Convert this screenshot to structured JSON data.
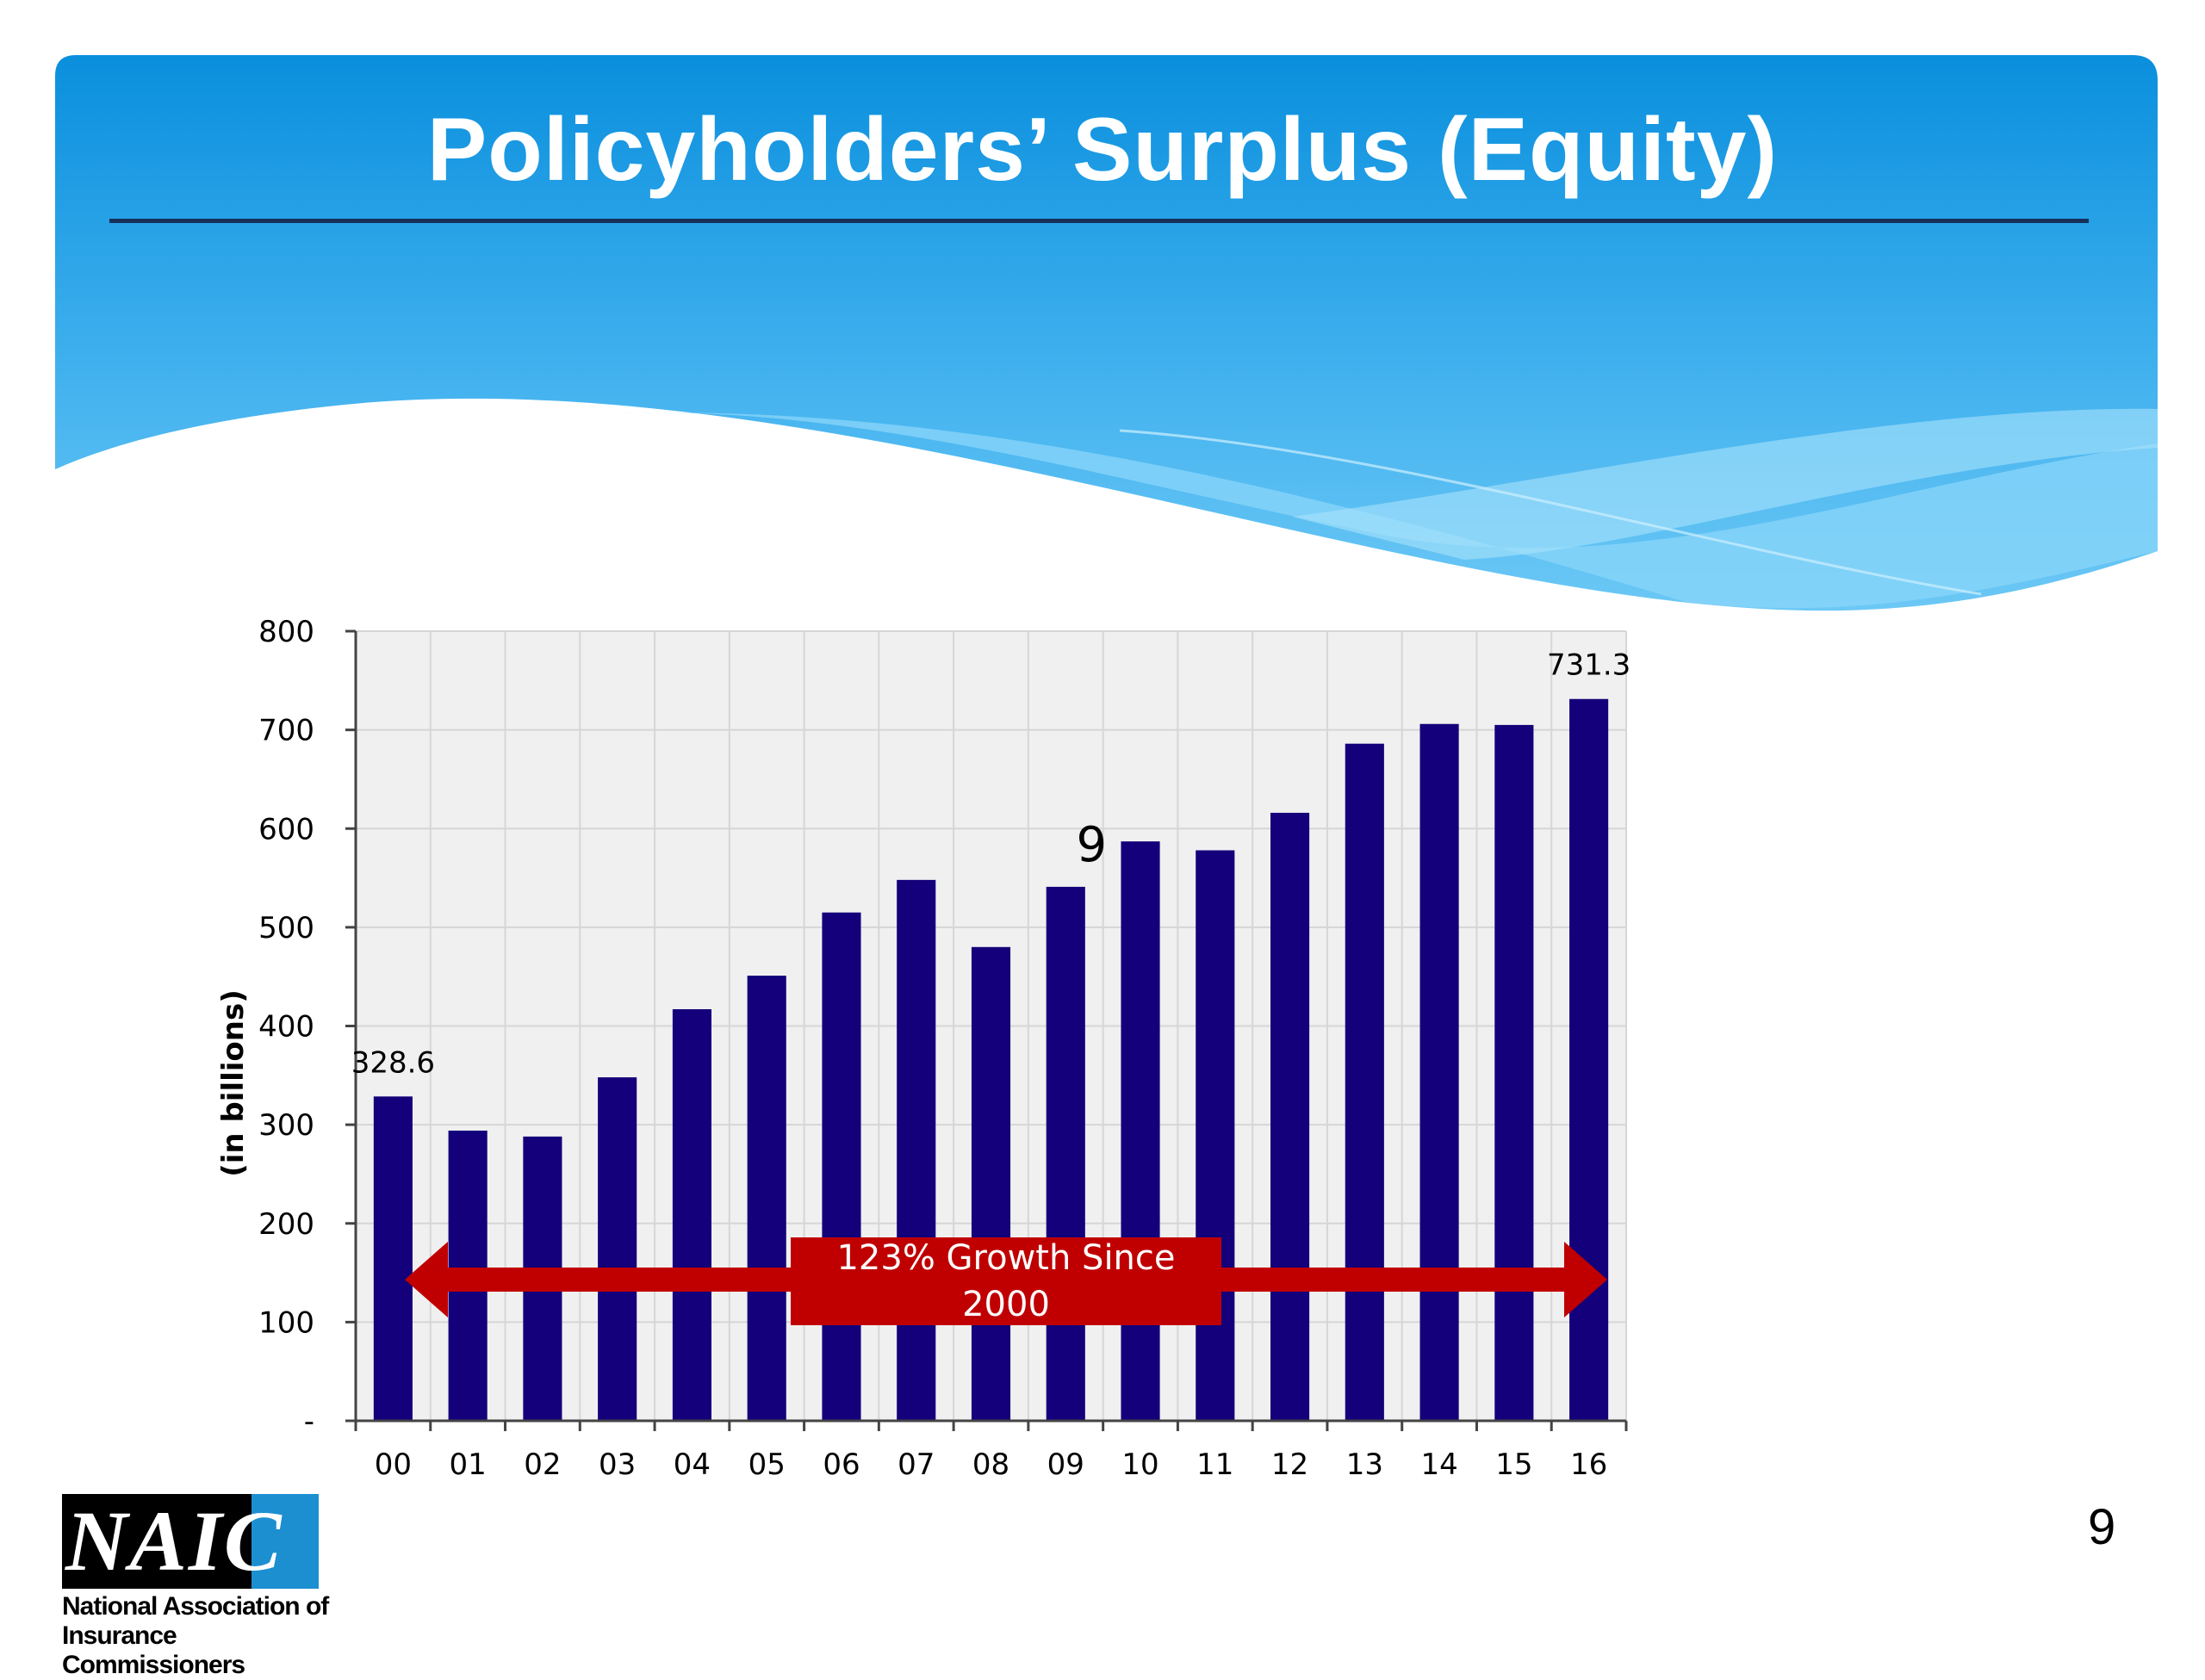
{
  "slide": {
    "title": "Policyholders’ Surplus (Equity)",
    "page_number": "9"
  },
  "logo": {
    "letters": "NAIC",
    "org_name_line1": "National Association of",
    "org_name_line2": "Insurance Commissioners"
  },
  "colors": {
    "banner_blue": "#1a96e0",
    "bar": "#13007a",
    "arrow_red": "#c00000",
    "plot_background": "#f0f0f0"
  },
  "chart_data": {
    "type": "bar",
    "categories": [
      "00",
      "01",
      "02",
      "03",
      "04",
      "05",
      "06",
      "07",
      "08",
      "09",
      "10",
      "11",
      "12",
      "13",
      "14",
      "15",
      "16"
    ],
    "values": [
      328.6,
      294,
      288,
      348,
      417,
      451,
      515,
      548,
      480,
      541,
      587,
      578,
      616,
      686,
      706,
      705,
      731.3
    ],
    "ylabel": "(in billions)",
    "ylim": [
      0,
      800
    ],
    "yticks": [
      0,
      100,
      200,
      300,
      400,
      500,
      600,
      700,
      800
    ],
    "ytick_labels": [
      "-",
      "100",
      "200",
      "300",
      "400",
      "500",
      "600",
      "700",
      "800"
    ],
    "grid": true,
    "data_labels": [
      {
        "category": "00",
        "text": "328.6"
      },
      {
        "category": "16",
        "text": "731.3"
      }
    ],
    "stray_annotation": {
      "category": "09",
      "text": "9"
    },
    "growth_annotation": "123% Growth Since 2000"
  }
}
